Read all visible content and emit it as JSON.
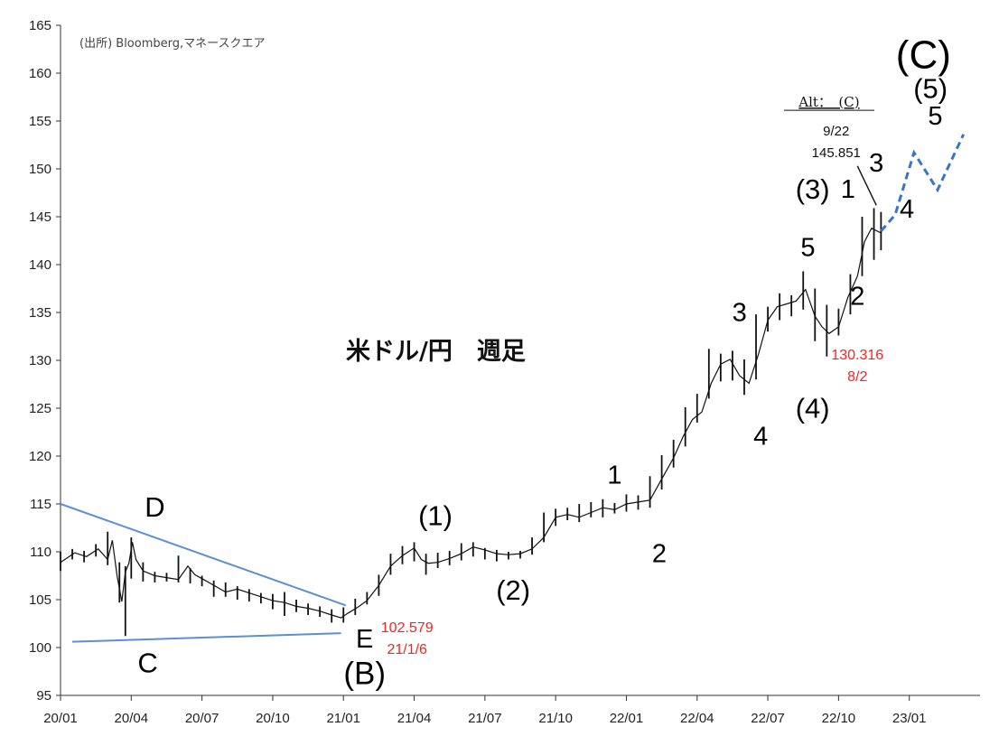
{
  "chart_data": {
    "type": "ohlc",
    "title": "米ドル/円　週足",
    "source": "(出所)  Bloomberg,マネースクエア",
    "ylim": [
      95,
      165
    ],
    "yticks": [
      "95",
      "100",
      "105",
      "110",
      "115",
      "120",
      "125",
      "130",
      "135",
      "140",
      "145",
      "150",
      "155",
      "160",
      "165"
    ],
    "xticks": [
      "20/01",
      "20/04",
      "20/07",
      "20/10",
      "21/01",
      "21/04",
      "21/07",
      "21/10",
      "22/01",
      "22/04",
      "22/07",
      "22/10",
      "23/01"
    ],
    "xlim_months": [
      0,
      39
    ],
    "close_path": [
      [
        0.0,
        108.9
      ],
      [
        0.6,
        109.9
      ],
      [
        1.1,
        109.5
      ],
      [
        1.6,
        110.3
      ],
      [
        2.0,
        109.2
      ],
      [
        2.2,
        111.2
      ],
      [
        2.4,
        107.5
      ],
      [
        2.6,
        104.8
      ],
      [
        2.75,
        107.9
      ],
      [
        2.9,
        108.8
      ],
      [
        3.05,
        111.0
      ],
      [
        3.2,
        109.2
      ],
      [
        3.5,
        108.0
      ],
      [
        4.0,
        107.5
      ],
      [
        4.5,
        107.3
      ],
      [
        5.0,
        107.1
      ],
      [
        5.4,
        108.5
      ],
      [
        5.7,
        107.6
      ],
      [
        6.0,
        107.2
      ],
      [
        6.5,
        106.5
      ],
      [
        7.0,
        105.8
      ],
      [
        7.5,
        106.1
      ],
      [
        8.0,
        105.7
      ],
      [
        8.5,
        105.3
      ],
      [
        9.0,
        104.9
      ],
      [
        9.5,
        104.7
      ],
      [
        10.0,
        104.3
      ],
      [
        10.5,
        104.1
      ],
      [
        11.0,
        103.8
      ],
      [
        11.5,
        103.4
      ],
      [
        11.9,
        103.1
      ],
      [
        12.2,
        103.6
      ],
      [
        12.6,
        104.2
      ],
      [
        13.0,
        104.9
      ],
      [
        13.5,
        106.5
      ],
      [
        14.0,
        108.5
      ],
      [
        14.5,
        109.6
      ],
      [
        15.0,
        110.4
      ],
      [
        15.3,
        109.2
      ],
      [
        15.6,
        108.8
      ],
      [
        16.0,
        108.9
      ],
      [
        16.5,
        109.3
      ],
      [
        17.0,
        109.8
      ],
      [
        17.5,
        110.5
      ],
      [
        18.0,
        110.2
      ],
      [
        18.5,
        109.8
      ],
      [
        19.0,
        109.7
      ],
      [
        19.5,
        109.8
      ],
      [
        20.0,
        110.3
      ],
      [
        20.5,
        111.5
      ],
      [
        21.0,
        113.6
      ],
      [
        21.5,
        113.9
      ],
      [
        22.0,
        113.6
      ],
      [
        22.5,
        114.1
      ],
      [
        23.0,
        114.6
      ],
      [
        23.5,
        114.4
      ],
      [
        24.0,
        115.0
      ],
      [
        24.5,
        115.2
      ],
      [
        25.0,
        115.4
      ],
      [
        25.5,
        117.6
      ],
      [
        26.0,
        119.8
      ],
      [
        26.4,
        122.0
      ],
      [
        26.8,
        123.8
      ],
      [
        27.2,
        124.6
      ],
      [
        27.6,
        127.6
      ],
      [
        28.0,
        129.6
      ],
      [
        28.4,
        130.1
      ],
      [
        28.8,
        128.4
      ],
      [
        29.2,
        127.6
      ],
      [
        29.6,
        130.6
      ],
      [
        30.0,
        134.2
      ],
      [
        30.4,
        135.6
      ],
      [
        30.8,
        135.9
      ],
      [
        31.2,
        136.2
      ],
      [
        31.6,
        137.4
      ],
      [
        32.0,
        134.6
      ],
      [
        32.3,
        133.5
      ],
      [
        32.6,
        132.8
      ],
      [
        33.0,
        133.5
      ],
      [
        33.4,
        136.6
      ],
      [
        33.8,
        138.8
      ],
      [
        34.1,
        142.4
      ],
      [
        34.4,
        143.8
      ],
      [
        34.8,
        143.3
      ]
    ],
    "weekly_bars": [
      [
        0.0,
        108.0,
        110.0
      ],
      [
        0.5,
        109.2,
        110.3
      ],
      [
        1.0,
        108.9,
        110.1
      ],
      [
        1.5,
        109.5,
        110.8
      ],
      [
        2.0,
        108.6,
        112.1
      ],
      [
        2.5,
        104.7,
        108.9
      ],
      [
        2.75,
        101.2,
        108.5
      ],
      [
        3.0,
        107.2,
        111.5
      ],
      [
        3.5,
        106.9,
        108.9
      ],
      [
        4.0,
        106.8,
        107.9
      ],
      [
        4.5,
        106.9,
        107.8
      ],
      [
        5.0,
        106.8,
        109.6
      ],
      [
        5.5,
        106.7,
        108.3
      ],
      [
        6.0,
        106.4,
        107.5
      ],
      [
        6.5,
        105.3,
        107.0
      ],
      [
        7.0,
        105.3,
        106.8
      ],
      [
        7.5,
        105.0,
        106.4
      ],
      [
        8.0,
        104.8,
        106.1
      ],
      [
        8.5,
        104.6,
        105.7
      ],
      [
        9.0,
        104.0,
        105.6
      ],
      [
        9.5,
        103.3,
        105.8
      ],
      [
        10.0,
        103.7,
        105.0
      ],
      [
        10.5,
        103.4,
        104.6
      ],
      [
        11.0,
        103.2,
        104.3
      ],
      [
        11.5,
        102.6,
        104.0
      ],
      [
        12.0,
        102.6,
        104.2
      ],
      [
        12.5,
        103.4,
        105.1
      ],
      [
        13.0,
        104.5,
        105.8
      ],
      [
        13.5,
        105.4,
        107.6
      ],
      [
        14.0,
        107.6,
        109.8
      ],
      [
        14.5,
        108.7,
        110.6
      ],
      [
        15.0,
        109.0,
        111.0
      ],
      [
        15.5,
        107.6,
        109.8
      ],
      [
        16.0,
        108.3,
        109.9
      ],
      [
        16.5,
        108.6,
        110.1
      ],
      [
        17.0,
        109.1,
        110.9
      ],
      [
        17.5,
        109.5,
        111.0
      ],
      [
        18.0,
        109.2,
        110.4
      ],
      [
        18.5,
        109.0,
        110.2
      ],
      [
        19.0,
        109.2,
        110.0
      ],
      [
        19.5,
        109.3,
        110.1
      ],
      [
        20.0,
        109.7,
        111.5
      ],
      [
        20.5,
        111.0,
        114.1
      ],
      [
        21.0,
        112.7,
        114.5
      ],
      [
        21.5,
        113.3,
        114.6
      ],
      [
        22.0,
        113.1,
        115.0
      ],
      [
        22.5,
        113.6,
        115.2
      ],
      [
        23.0,
        113.6,
        115.5
      ],
      [
        23.5,
        114.0,
        115.1
      ],
      [
        24.0,
        114.2,
        116.0
      ],
      [
        24.5,
        114.4,
        115.9
      ],
      [
        25.0,
        114.6,
        117.9
      ],
      [
        25.5,
        116.5,
        120.1
      ],
      [
        26.0,
        118.8,
        121.7
      ],
      [
        26.5,
        121.0,
        125.1
      ],
      [
        27.0,
        123.5,
        126.5
      ],
      [
        27.5,
        126.0,
        131.2
      ],
      [
        28.0,
        127.8,
        130.7
      ],
      [
        28.5,
        127.9,
        131.0
      ],
      [
        29.0,
        126.4,
        130.1
      ],
      [
        29.5,
        128.0,
        134.8
      ],
      [
        30.0,
        133.0,
        135.6
      ],
      [
        30.5,
        134.2,
        137.0
      ],
      [
        31.0,
        134.6,
        136.8
      ],
      [
        31.5,
        135.3,
        139.3
      ],
      [
        32.0,
        132.0,
        137.5
      ],
      [
        32.5,
        130.4,
        135.8
      ],
      [
        33.0,
        132.6,
        135.4
      ],
      [
        33.5,
        134.8,
        139.0
      ],
      [
        34.0,
        138.8,
        145.0
      ],
      [
        34.5,
        140.5,
        145.9
      ],
      [
        34.8,
        141.5,
        145.5
      ]
    ],
    "triangle_lines": [
      {
        "from": [
          0.0,
          115.0
        ],
        "to": [
          12.1,
          104.4
        ]
      },
      {
        "from": [
          0.5,
          100.6
        ],
        "to": [
          11.9,
          101.5
        ]
      }
    ],
    "projection": [
      [
        34.8,
        143.5
      ],
      [
        35.4,
        145.2
      ],
      [
        36.2,
        151.7
      ],
      [
        37.2,
        147.8
      ],
      [
        38.3,
        153.6
      ]
    ],
    "small_tick_line": {
      "from": [
        33.8,
        150.3
      ],
      "to": [
        34.6,
        146.2
      ]
    },
    "wave_labels": [
      {
        "text": "D",
        "x": 4.0,
        "y": 113.7,
        "size": 31
      },
      {
        "text": "C",
        "x": 3.7,
        "y": 97.4,
        "size": 31
      },
      {
        "text": "E",
        "x": 12.9,
        "y": 100.0,
        "size": 29
      },
      {
        "text": "(B)",
        "x": 12.9,
        "y": 96.2,
        "size": 35
      },
      {
        "text": "(1)",
        "x": 15.9,
        "y": 112.8,
        "size": 31
      },
      {
        "text": "(2)",
        "x": 19.2,
        "y": 105.0,
        "size": 31
      },
      {
        "text": "1",
        "x": 23.5,
        "y": 117.1,
        "size": 29
      },
      {
        "text": "2",
        "x": 25.4,
        "y": 108.9,
        "size": 29
      },
      {
        "text": "3",
        "x": 28.8,
        "y": 134.1,
        "size": 29
      },
      {
        "text": "4",
        "x": 29.7,
        "y": 121.2,
        "size": 29
      },
      {
        "text": "5",
        "x": 31.7,
        "y": 140.9,
        "size": 29
      },
      {
        "text": "(3)",
        "x": 31.9,
        "y": 146.9,
        "size": 31
      },
      {
        "text": "(4)",
        "x": 31.9,
        "y": 124.0,
        "size": 31
      },
      {
        "text": "1",
        "x": 33.4,
        "y": 147.0,
        "size": 29
      },
      {
        "text": "2",
        "x": 33.8,
        "y": 135.8,
        "size": 29
      },
      {
        "text": "3",
        "x": 34.6,
        "y": 149.7,
        "size": 29
      },
      {
        "text": "4",
        "x": 35.9,
        "y": 144.9,
        "size": 29
      },
      {
        "text": "5",
        "x": 37.1,
        "y": 154.6,
        "size": 29
      },
      {
        "text": "(5)",
        "x": 36.9,
        "y": 157.4,
        "size": 31
      },
      {
        "text": "(C)",
        "x": 36.6,
        "y": 160.5,
        "size": 44
      }
    ],
    "red_annotations": [
      {
        "lines": [
          "102.579",
          "21/1/6"
        ],
        "x": 14.7,
        "y": 101.6
      },
      {
        "lines": [
          "130.316",
          "8/2"
        ],
        "x": 33.8,
        "y": 130.1
      }
    ],
    "black_annotation": {
      "lines": [
        "9/22",
        "145.851"
      ],
      "x": 32.9,
      "y": 153.5
    },
    "alt_label": "Alt：　(C)"
  }
}
